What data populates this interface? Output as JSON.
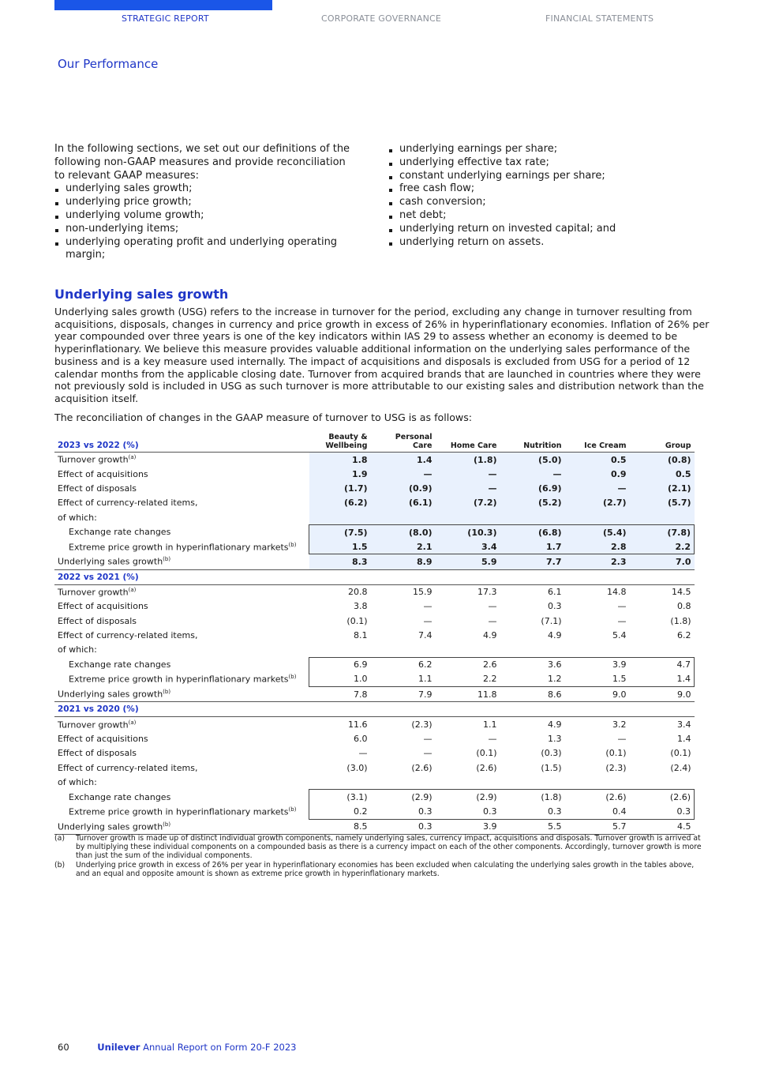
{
  "nav": {
    "tabs": [
      "STRATEGIC REPORT",
      "CORPORATE GOVERNANCE",
      "FINANCIAL STATEMENTS"
    ],
    "active": 0
  },
  "section_title": "Our Performance",
  "intro": {
    "text": "In the following sections, we set out our definitions of the following non-GAAP measures and provide reconciliation to relevant GAAP measures:",
    "left_items": [
      "underlying sales growth;",
      "underlying price growth;",
      "underlying volume growth;",
      "non-underlying items;",
      "underlying operating profit and underlying operating margin;"
    ],
    "right_items": [
      "underlying earnings per share;",
      "underlying effective tax rate;",
      "constant underlying earnings per share;",
      "free cash flow;",
      "cash conversion;",
      "net debt;",
      "underlying return on invested capital; and",
      "underlying return on assets."
    ]
  },
  "usg": {
    "heading": "Underlying sales growth",
    "body": "Underlying sales growth (USG) refers to the increase in turnover for the period, excluding any change in turnover resulting from acquisitions, disposals, changes in currency and price growth in excess of 26% in hyperinflationary economies. Inflation of 26% per year compounded over three years is one of the key indicators within IAS 29 to assess whether an economy is deemed to be hyperinflationary. We believe this measure provides valuable additional information on the underlying sales performance of the business and is a key measure used internally. The impact of acquisitions and disposals is excluded from USG for a period of 12 calendar months from the applicable closing date. Turnover from acquired brands that are launched in countries where they were not previously sold is included in USG as such turnover is more attributable to our existing sales and distribution network than the acquisition itself.",
    "recon_text": "The reconciliation of changes in the GAAP measure of turnover to USG is as follows:"
  },
  "table": {
    "columns": [
      "Beauty & Wellbeing",
      "Personal Care",
      "Home Care",
      "Nutrition",
      "Ice Cream",
      "Group"
    ],
    "row_labels": [
      {
        "text": "Turnover growth",
        "sup": "(a)"
      },
      {
        "text": "Effect of acquisitions",
        "sup": ""
      },
      {
        "text": "Effect of disposals",
        "sup": ""
      },
      {
        "text": "Effect of currency-related items,",
        "sup": ""
      },
      {
        "text": "of which:",
        "sup": ""
      },
      {
        "text": "Exchange rate changes",
        "sup": ""
      },
      {
        "text": "Extreme price growth in hyperinflationary markets",
        "sup": "(b)"
      },
      {
        "text": "Underlying sales growth",
        "sup": "(b)"
      }
    ],
    "sections": [
      {
        "title": "2023 vs 2022 (%)",
        "rows": [
          [
            "1.8",
            "1.4",
            "(1.8)",
            "(5.0)",
            "0.5",
            "(0.8)"
          ],
          [
            "1.9",
            "—",
            "—",
            "—",
            "0.9",
            "0.5"
          ],
          [
            "(1.7)",
            "(0.9)",
            "—",
            "(6.9)",
            "—",
            "(2.1)"
          ],
          [
            "(6.2)",
            "(6.1)",
            "(7.2)",
            "(5.2)",
            "(2.7)",
            "(5.7)"
          ],
          [
            "",
            "",
            "",
            "",
            "",
            ""
          ],
          [
            "(7.5)",
            "(8.0)",
            "(10.3)",
            "(6.8)",
            "(5.4)",
            "(7.8)"
          ],
          [
            "1.5",
            "2.1",
            "3.4",
            "1.7",
            "2.8",
            "2.2"
          ],
          [
            "8.3",
            "8.9",
            "5.9",
            "7.7",
            "2.3",
            "7.0"
          ]
        ]
      },
      {
        "title": "2022 vs 2021 (%)",
        "rows": [
          [
            "20.8",
            "15.9",
            "17.3",
            "6.1",
            "14.8",
            "14.5"
          ],
          [
            "3.8",
            "—",
            "—",
            "0.3",
            "—",
            "0.8"
          ],
          [
            "(0.1)",
            "—",
            "—",
            "(7.1)",
            "—",
            "(1.8)"
          ],
          [
            "8.1",
            "7.4",
            "4.9",
            "4.9",
            "5.4",
            "6.2"
          ],
          [
            "",
            "",
            "",
            "",
            "",
            ""
          ],
          [
            "6.9",
            "6.2",
            "2.6",
            "3.6",
            "3.9",
            "4.7"
          ],
          [
            "1.0",
            "1.1",
            "2.2",
            "1.2",
            "1.5",
            "1.4"
          ],
          [
            "7.8",
            "7.9",
            "11.8",
            "8.6",
            "9.0",
            "9.0"
          ]
        ]
      },
      {
        "title": "2021 vs 2020 (%)",
        "rows": [
          [
            "11.6",
            "(2.3)",
            "1.1",
            "4.9",
            "3.2",
            "3.4"
          ],
          [
            "6.0",
            "—",
            "—",
            "1.3",
            "—",
            "1.4"
          ],
          [
            "—",
            "—",
            "(0.1)",
            "(0.3)",
            "(0.1)",
            "(0.1)"
          ],
          [
            "(3.0)",
            "(2.6)",
            "(2.6)",
            "(1.5)",
            "(2.3)",
            "(2.4)"
          ],
          [
            "",
            "",
            "",
            "",
            "",
            ""
          ],
          [
            "(3.1)",
            "(2.9)",
            "(2.9)",
            "(1.8)",
            "(2.6)",
            "(2.6)"
          ],
          [
            "0.2",
            "0.3",
            "0.3",
            "0.3",
            "0.4",
            "0.3"
          ],
          [
            "8.5",
            "0.3",
            "3.9",
            "5.5",
            "5.7",
            "4.5"
          ]
        ]
      }
    ]
  },
  "footnotes": [
    {
      "key": "(a)",
      "text": "Turnover growth is made up of distinct individual growth components, namely underlying sales, currency impact, acquisitions and disposals. Turnover growth is arrived at by multiplying these individual components on a compounded basis as there is a currency impact on each of the other components. Accordingly, turnover growth is more than just the sum of the individual components."
    },
    {
      "key": "(b)",
      "text": "Underlying price growth in excess of 26% per year in hyperinflationary economies has been excluded when calculating the underlying sales growth in the tables above, and an equal and opposite amount is shown as extreme price growth in hyperinflationary markets."
    }
  ],
  "footer": {
    "page_number": "60",
    "brand": "Unilever",
    "doc_title": "Annual Report on Form 20-F 2023"
  },
  "colors": {
    "accent": "#1f36c7",
    "shade": "#e9f1fd"
  }
}
